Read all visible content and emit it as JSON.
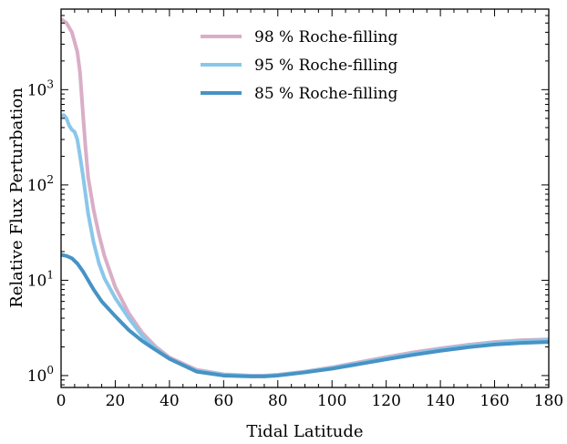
{
  "chart_data": {
    "type": "line",
    "xlabel": "Tidal Latitude",
    "ylabel": "Relative Flux Perturbation",
    "xlim": [
      0,
      180
    ],
    "ylim": [
      0.75,
      7000
    ],
    "yscale": "log",
    "xticks": [
      0,
      20,
      40,
      60,
      80,
      100,
      120,
      140,
      160,
      180
    ],
    "xtick_labels": [
      "0",
      "20",
      "40",
      "60",
      "80",
      "100",
      "120",
      "140",
      "160",
      "180"
    ],
    "yticks": [
      {
        "value": 1,
        "base": "10",
        "exp": "0"
      },
      {
        "value": 10,
        "base": "10",
        "exp": "1"
      },
      {
        "value": 100,
        "base": "10",
        "exp": "2"
      },
      {
        "value": 1000,
        "base": "10",
        "exp": "3"
      }
    ],
    "grid": false,
    "legend_position": "top-center",
    "series": [
      {
        "name": "98 % Roche-filling",
        "color": "#d9aec6",
        "x": [
          0,
          2,
          4,
          6,
          7,
          8,
          9,
          10,
          12,
          14,
          16,
          20,
          25,
          30,
          35,
          40,
          50,
          60,
          70,
          75,
          80,
          90,
          100,
          110,
          120,
          130,
          140,
          150,
          160,
          170,
          180
        ],
        "y": [
          5500,
          5000,
          4000,
          2500,
          1500,
          600,
          250,
          120,
          55,
          30,
          18,
          8.5,
          4.5,
          2.8,
          2.0,
          1.55,
          1.15,
          1.03,
          1.0,
          1.0,
          1.02,
          1.1,
          1.22,
          1.38,
          1.56,
          1.75,
          1.93,
          2.1,
          2.25,
          2.35,
          2.4
        ]
      },
      {
        "name": "95 % Roche-filling",
        "color": "#89c7ea",
        "x": [
          0,
          1,
          2,
          3,
          4,
          5,
          6,
          7,
          8,
          10,
          12,
          14,
          16,
          20,
          25,
          30,
          35,
          40,
          50,
          60,
          70,
          75,
          80,
          90,
          100,
          110,
          120,
          130,
          140,
          150,
          160,
          170,
          180
        ],
        "y": [
          530,
          540,
          500,
          420,
          380,
          360,
          300,
          200,
          130,
          50,
          25,
          15,
          10.5,
          6.5,
          4.0,
          2.6,
          1.9,
          1.5,
          1.12,
          1.02,
          0.99,
          0.99,
          1.01,
          1.09,
          1.2,
          1.35,
          1.52,
          1.7,
          1.88,
          2.05,
          2.2,
          2.3,
          2.35
        ]
      },
      {
        "name": "85 % Roche-filling",
        "color": "#4693c5",
        "x": [
          0,
          2,
          4,
          6,
          8,
          10,
          12,
          15,
          20,
          25,
          30,
          35,
          40,
          50,
          60,
          70,
          75,
          80,
          90,
          100,
          110,
          120,
          130,
          140,
          150,
          160,
          170,
          180
        ],
        "y": [
          18.5,
          18,
          17,
          15,
          12.5,
          10,
          8,
          6,
          4.2,
          3.0,
          2.3,
          1.85,
          1.5,
          1.1,
          1.0,
          0.98,
          0.98,
          1.0,
          1.08,
          1.18,
          1.32,
          1.48,
          1.65,
          1.82,
          1.98,
          2.12,
          2.2,
          2.25
        ]
      }
    ]
  }
}
